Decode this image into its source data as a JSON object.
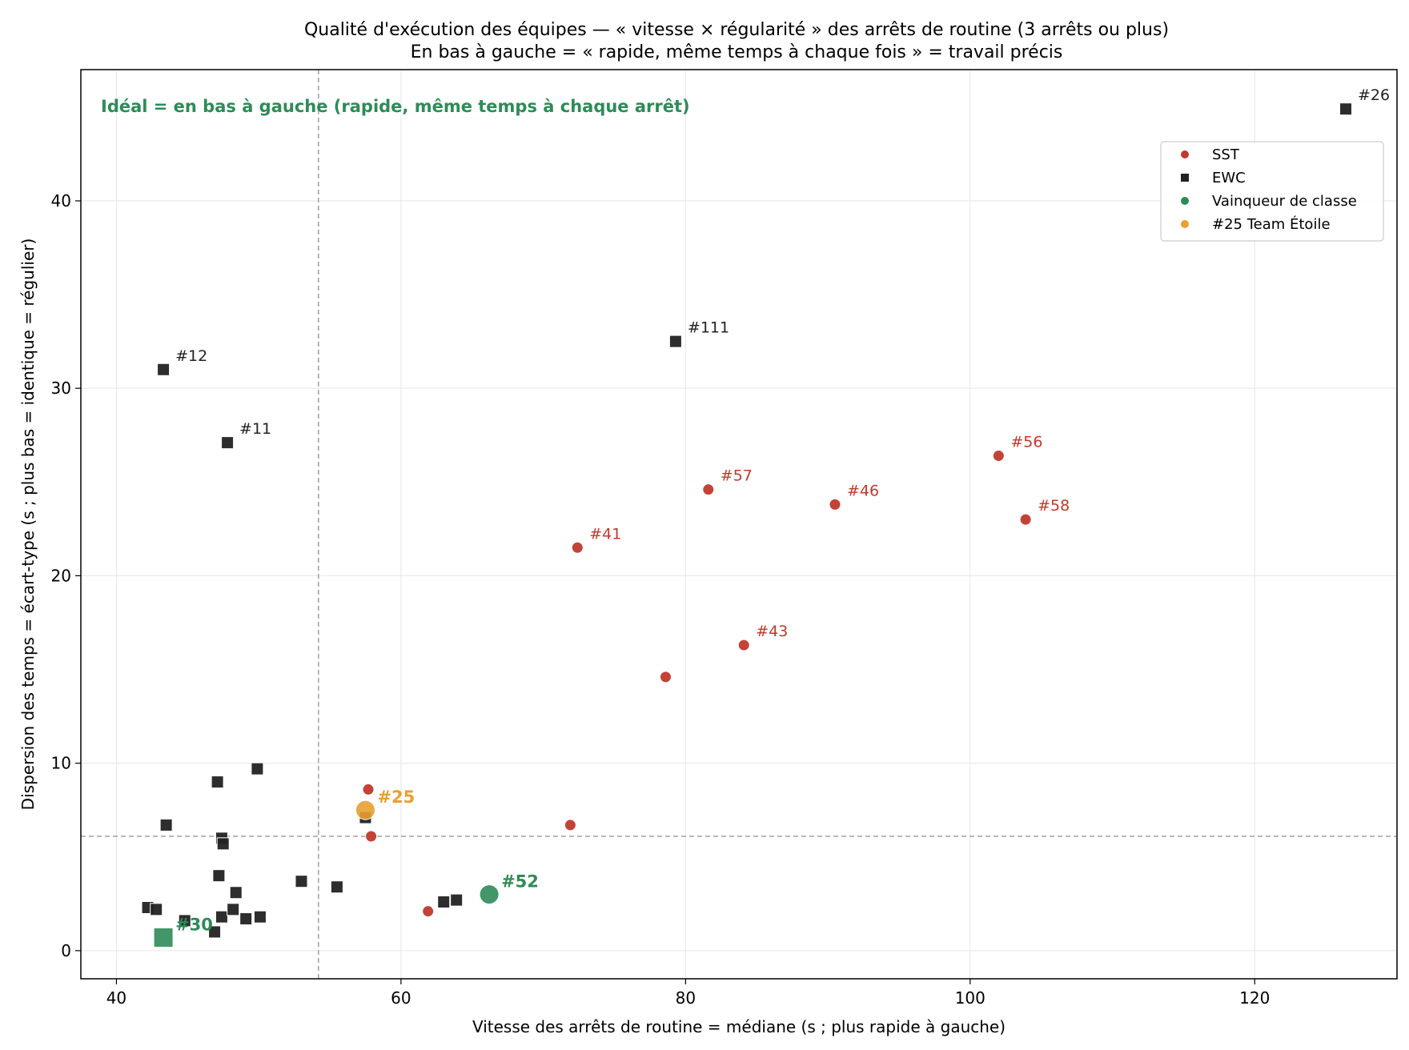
{
  "chart_data": {
    "type": "scatter",
    "title": "Qualité d'exécution des équipes — « vitesse × régularité » des arrêts de routine (3 arrêts ou plus)",
    "subtitle": "En bas à gauche = « rapide, même temps à chaque fois » = travail précis",
    "xlabel": "Vitesse des arrêts de routine = médiane (s ; plus rapide à gauche)",
    "ylabel": "Dispersion des temps = écart-type (s ; plus bas = identique = régulier)",
    "xlim": [
      37.5,
      130
    ],
    "ylim": [
      -1.5,
      47
    ],
    "xticks": [
      40,
      60,
      80,
      100,
      120
    ],
    "yticks": [
      0,
      10,
      20,
      30,
      40
    ],
    "grid": true,
    "ref_lines": {
      "x": 54.2,
      "y": 6.1
    },
    "ideal_note": "Idéal = en bas à gauche (rapide, même temps à chaque arrêt)",
    "legend_position": "top-right",
    "colors": {
      "SST": "#c0392b",
      "EWC": "#222222",
      "winner": "#2e8b57",
      "team25": "#e8a030"
    },
    "legend": [
      {
        "label": "SST",
        "marker": "circle",
        "color": "#c0392b"
      },
      {
        "label": "EWC",
        "marker": "square",
        "color": "#222222"
      },
      {
        "label": "Vainqueur de classe",
        "marker": "circle",
        "color": "#2e8b57"
      },
      {
        "label": "#25 Team Étoile",
        "marker": "circle",
        "color": "#e8a030"
      }
    ],
    "series": [
      {
        "name": "SST",
        "marker": "circle",
        "points": [
          {
            "x": 57.7,
            "y": 8.6,
            "label": ""
          },
          {
            "x": 57.9,
            "y": 6.1,
            "label": ""
          },
          {
            "x": 61.9,
            "y": 2.1,
            "label": ""
          },
          {
            "x": 71.9,
            "y": 6.7,
            "label": ""
          },
          {
            "x": 72.4,
            "y": 21.5,
            "label": "#41"
          },
          {
            "x": 78.6,
            "y": 14.6,
            "label": ""
          },
          {
            "x": 81.6,
            "y": 24.6,
            "label": "#57"
          },
          {
            "x": 84.1,
            "y": 16.3,
            "label": "#43"
          },
          {
            "x": 90.5,
            "y": 23.8,
            "label": "#46"
          },
          {
            "x": 102.0,
            "y": 26.4,
            "label": "#56"
          },
          {
            "x": 103.9,
            "y": 23.0,
            "label": "#58"
          }
        ]
      },
      {
        "name": "EWC",
        "marker": "square",
        "points": [
          {
            "x": 42.2,
            "y": 2.3,
            "label": ""
          },
          {
            "x": 42.8,
            "y": 2.2,
            "label": ""
          },
          {
            "x": 43.3,
            "y": 31.0,
            "label": "#12"
          },
          {
            "x": 43.5,
            "y": 6.7,
            "label": ""
          },
          {
            "x": 44.8,
            "y": 1.6,
            "label": ""
          },
          {
            "x": 46.9,
            "y": 1.0,
            "label": ""
          },
          {
            "x": 47.1,
            "y": 9.0,
            "label": ""
          },
          {
            "x": 47.2,
            "y": 4.0,
            "label": ""
          },
          {
            "x": 47.4,
            "y": 1.8,
            "label": ""
          },
          {
            "x": 47.4,
            "y": 6.0,
            "label": ""
          },
          {
            "x": 47.5,
            "y": 5.7,
            "label": ""
          },
          {
            "x": 47.8,
            "y": 27.1,
            "label": "#11"
          },
          {
            "x": 48.2,
            "y": 2.2,
            "label": ""
          },
          {
            "x": 48.4,
            "y": 3.1,
            "label": ""
          },
          {
            "x": 49.1,
            "y": 1.7,
            "label": ""
          },
          {
            "x": 49.9,
            "y": 9.7,
            "label": ""
          },
          {
            "x": 50.1,
            "y": 1.8,
            "label": ""
          },
          {
            "x": 53.0,
            "y": 3.7,
            "label": ""
          },
          {
            "x": 55.5,
            "y": 3.4,
            "label": ""
          },
          {
            "x": 57.5,
            "y": 7.1,
            "label": ""
          },
          {
            "x": 63.0,
            "y": 2.6,
            "label": ""
          },
          {
            "x": 63.9,
            "y": 2.7,
            "label": ""
          },
          {
            "x": 79.3,
            "y": 32.5,
            "label": "#111"
          },
          {
            "x": 126.4,
            "y": 44.9,
            "label": "#26"
          }
        ]
      },
      {
        "name": "Vainqueur de classe",
        "points": [
          {
            "x": 43.3,
            "y": 0.7,
            "label": "#30",
            "marker": "square"
          },
          {
            "x": 66.2,
            "y": 3.0,
            "label": "#52",
            "marker": "circle"
          }
        ]
      },
      {
        "name": "#25 Team Étoile",
        "points": [
          {
            "x": 57.5,
            "y": 7.5,
            "label": "#25",
            "marker": "circle"
          }
        ]
      }
    ]
  }
}
